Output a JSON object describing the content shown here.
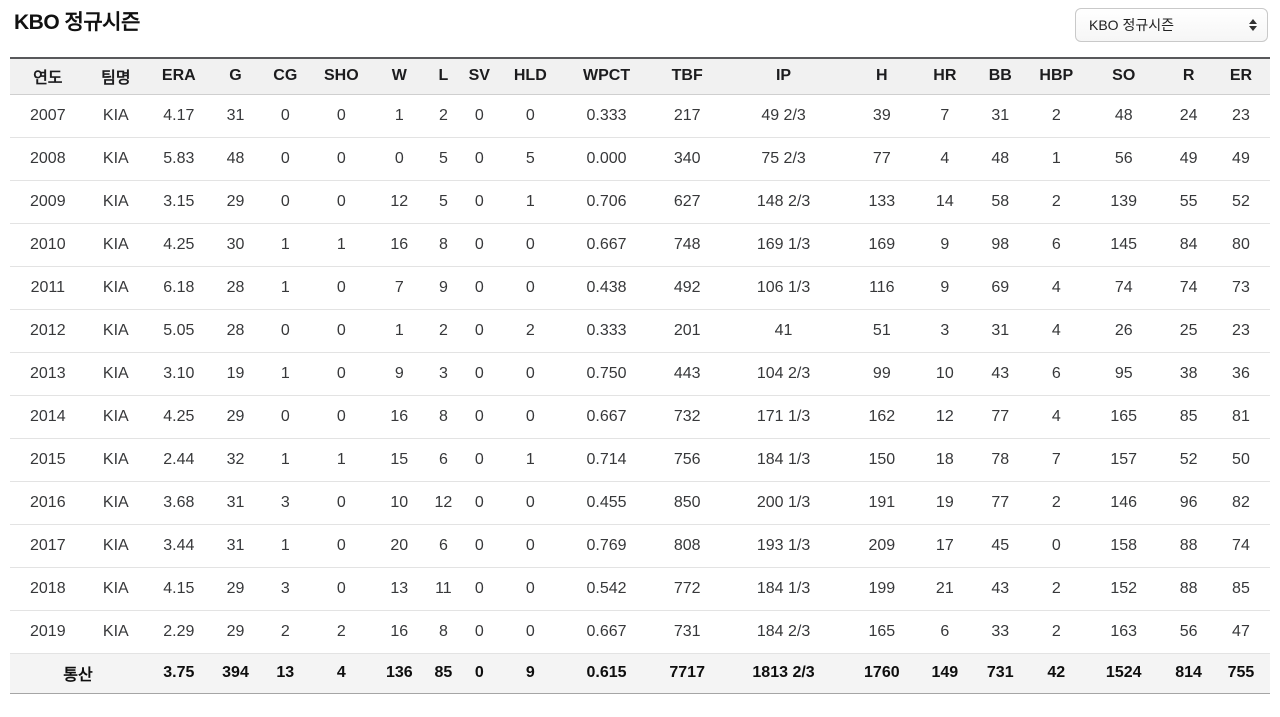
{
  "page": {
    "title": "KBO 정규시즌"
  },
  "season_select": {
    "value": "KBO 정규시즌"
  },
  "table": {
    "columns": [
      "연도",
      "팀명",
      "ERA",
      "G",
      "CG",
      "SHO",
      "W",
      "L",
      "SV",
      "HLD",
      "WPCT",
      "TBF",
      "IP",
      "H",
      "HR",
      "BB",
      "HBP",
      "SO",
      "R",
      "ER"
    ],
    "rows": [
      [
        "2007",
        "KIA",
        "4.17",
        "31",
        "0",
        "0",
        "1",
        "2",
        "0",
        "0",
        "0.333",
        "217",
        "49 2/3",
        "39",
        "7",
        "31",
        "2",
        "48",
        "24",
        "23"
      ],
      [
        "2008",
        "KIA",
        "5.83",
        "48",
        "0",
        "0",
        "0",
        "5",
        "0",
        "5",
        "0.000",
        "340",
        "75 2/3",
        "77",
        "4",
        "48",
        "1",
        "56",
        "49",
        "49"
      ],
      [
        "2009",
        "KIA",
        "3.15",
        "29",
        "0",
        "0",
        "12",
        "5",
        "0",
        "1",
        "0.706",
        "627",
        "148 2/3",
        "133",
        "14",
        "58",
        "2",
        "139",
        "55",
        "52"
      ],
      [
        "2010",
        "KIA",
        "4.25",
        "30",
        "1",
        "1",
        "16",
        "8",
        "0",
        "0",
        "0.667",
        "748",
        "169 1/3",
        "169",
        "9",
        "98",
        "6",
        "145",
        "84",
        "80"
      ],
      [
        "2011",
        "KIA",
        "6.18",
        "28",
        "1",
        "0",
        "7",
        "9",
        "0",
        "0",
        "0.438",
        "492",
        "106 1/3",
        "116",
        "9",
        "69",
        "4",
        "74",
        "74",
        "73"
      ],
      [
        "2012",
        "KIA",
        "5.05",
        "28",
        "0",
        "0",
        "1",
        "2",
        "0",
        "2",
        "0.333",
        "201",
        "41",
        "51",
        "3",
        "31",
        "4",
        "26",
        "25",
        "23"
      ],
      [
        "2013",
        "KIA",
        "3.10",
        "19",
        "1",
        "0",
        "9",
        "3",
        "0",
        "0",
        "0.750",
        "443",
        "104 2/3",
        "99",
        "10",
        "43",
        "6",
        "95",
        "38",
        "36"
      ],
      [
        "2014",
        "KIA",
        "4.25",
        "29",
        "0",
        "0",
        "16",
        "8",
        "0",
        "0",
        "0.667",
        "732",
        "171 1/3",
        "162",
        "12",
        "77",
        "4",
        "165",
        "85",
        "81"
      ],
      [
        "2015",
        "KIA",
        "2.44",
        "32",
        "1",
        "1",
        "15",
        "6",
        "0",
        "1",
        "0.714",
        "756",
        "184 1/3",
        "150",
        "18",
        "78",
        "7",
        "157",
        "52",
        "50"
      ],
      [
        "2016",
        "KIA",
        "3.68",
        "31",
        "3",
        "0",
        "10",
        "12",
        "0",
        "0",
        "0.455",
        "850",
        "200 1/3",
        "191",
        "19",
        "77",
        "2",
        "146",
        "96",
        "82"
      ],
      [
        "2017",
        "KIA",
        "3.44",
        "31",
        "1",
        "0",
        "20",
        "6",
        "0",
        "0",
        "0.769",
        "808",
        "193 1/3",
        "209",
        "17",
        "45",
        "0",
        "158",
        "88",
        "74"
      ],
      [
        "2018",
        "KIA",
        "4.15",
        "29",
        "3",
        "0",
        "13",
        "11",
        "0",
        "0",
        "0.542",
        "772",
        "184 1/3",
        "199",
        "21",
        "43",
        "2",
        "152",
        "88",
        "85"
      ],
      [
        "2019",
        "KIA",
        "2.29",
        "29",
        "2",
        "2",
        "16",
        "8",
        "0",
        "0",
        "0.667",
        "731",
        "184 2/3",
        "165",
        "6",
        "33",
        "2",
        "163",
        "56",
        "47"
      ]
    ],
    "total": {
      "label": "통산",
      "values": [
        "3.75",
        "394",
        "13",
        "4",
        "136",
        "85",
        "0",
        "9",
        "0.615",
        "7717",
        "1813 2/3",
        "1760",
        "149",
        "731",
        "42",
        "1524",
        "814",
        "755"
      ]
    }
  }
}
